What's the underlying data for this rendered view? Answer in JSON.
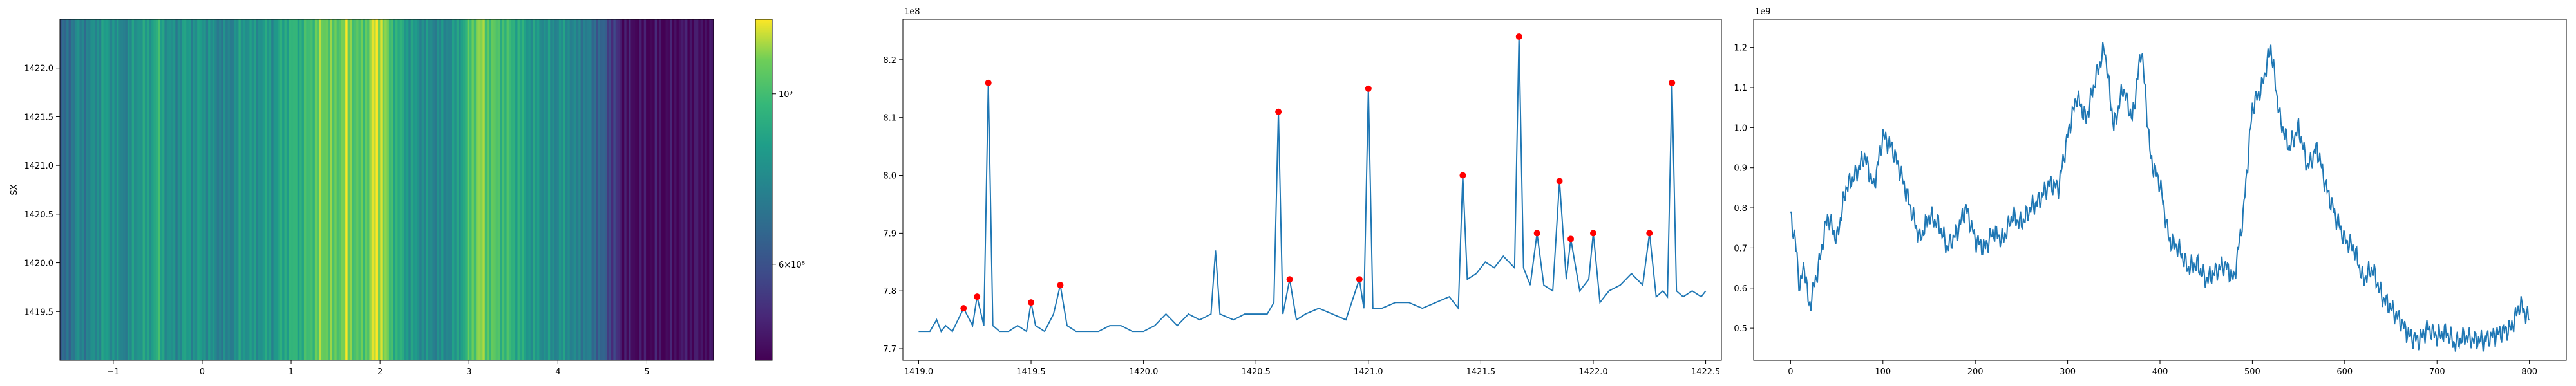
{
  "chart_data": [
    {
      "type": "heatmap",
      "title": "",
      "xlabel": "",
      "ylabel": "SX",
      "xlim": [
        -1.6,
        5.75
      ],
      "ylim": [
        1419.0,
        1422.5
      ],
      "x_ticks": [
        "−1",
        "0",
        "1",
        "2",
        "3",
        "4",
        "5"
      ],
      "x_tick_values": [
        -1,
        0,
        1,
        2,
        3,
        4,
        5
      ],
      "y_ticks": [
        "1419.5",
        "1420.0",
        "1420.5",
        "1421.0",
        "1421.5",
        "1422.0"
      ],
      "y_tick_values": [
        1419.5,
        1420.0,
        1420.5,
        1421.0,
        1421.5,
        1422.0
      ],
      "colormap": "viridis",
      "colorbar_scale": "log",
      "colorbar_ticks": [
        "10⁹",
        "6×10⁸"
      ],
      "colorbar_tick_values": [
        1.0,
        0.6
      ],
      "colorbar_range": [
        0.45,
        1.25
      ],
      "column_profile": {
        "x": [
          -1.6,
          -1.5,
          -1.4,
          -1.3,
          -1.2,
          -1.1,
          -1.0,
          -0.9,
          -0.8,
          -0.7,
          -0.6,
          -0.5,
          -0.4,
          -0.3,
          -0.2,
          -0.1,
          0.0,
          0.1,
          0.2,
          0.3,
          0.4,
          0.5,
          0.6,
          0.7,
          0.8,
          0.9,
          1.0,
          1.1,
          1.2,
          1.3,
          1.4,
          1.5,
          1.6,
          1.7,
          1.8,
          1.9,
          2.0,
          2.1,
          2.2,
          2.3,
          2.4,
          2.5,
          2.6,
          2.7,
          2.8,
          2.9,
          3.0,
          3.1,
          3.2,
          3.3,
          3.4,
          3.5,
          3.6,
          3.7,
          3.8,
          3.9,
          4.0,
          4.1,
          4.2,
          4.3,
          4.4,
          4.5,
          4.6,
          4.7,
          4.8,
          4.9,
          5.0,
          5.1,
          5.2,
          5.3,
          5.4,
          5.5,
          5.6,
          5.7
        ],
        "level": [
          0.3,
          0.42,
          0.52,
          0.48,
          0.55,
          0.6,
          0.58,
          0.5,
          0.55,
          0.62,
          0.6,
          0.72,
          0.58,
          0.52,
          0.62,
          0.56,
          0.6,
          0.55,
          0.5,
          0.48,
          0.58,
          0.6,
          0.56,
          0.62,
          0.58,
          0.66,
          0.72,
          0.7,
          0.76,
          0.85,
          0.88,
          0.8,
          0.92,
          0.84,
          0.78,
          0.92,
          0.98,
          0.8,
          0.7,
          0.62,
          0.58,
          0.55,
          0.52,
          0.52,
          0.55,
          0.62,
          0.78,
          0.9,
          0.84,
          0.8,
          0.76,
          0.72,
          0.66,
          0.6,
          0.58,
          0.55,
          0.54,
          0.58,
          0.48,
          0.5,
          0.4,
          0.34,
          0.22,
          0.1,
          0.05,
          0.03,
          0.03,
          0.04,
          0.02,
          0.03,
          0.05,
          0.06,
          0.04,
          0.03
        ]
      }
    },
    {
      "type": "line",
      "title": "",
      "xlabel": "",
      "ylabel": "",
      "offset_text": "1e8",
      "xlim": [
        1418.93,
        1422.57
      ],
      "ylim": [
        7.68,
        8.27
      ],
      "x_ticks": [
        "1419.0",
        "1419.5",
        "1420.0",
        "1420.5",
        "1421.0",
        "1421.5",
        "1422.0",
        "1422.5"
      ],
      "x_tick_values": [
        1419.0,
        1419.5,
        1420.0,
        1420.5,
        1421.0,
        1421.5,
        1422.0,
        1422.5
      ],
      "y_ticks": [
        "7.7",
        "7.8",
        "7.9",
        "8.0",
        "8.1",
        "8.2"
      ],
      "y_tick_values": [
        7.7,
        7.8,
        7.9,
        8.0,
        8.1,
        8.2
      ],
      "line_color": "#1f77b4",
      "marker_color": "#ff0000",
      "series": [
        {
          "x": [
            1419.0,
            1419.05,
            1419.08,
            1419.1,
            1419.12,
            1419.15,
            1419.2,
            1419.24,
            1419.26,
            1419.29,
            1419.31,
            1419.33,
            1419.36,
            1419.4,
            1419.44,
            1419.48,
            1419.5,
            1419.52,
            1419.56,
            1419.6,
            1419.63,
            1419.66,
            1419.7,
            1419.75,
            1419.8,
            1419.85,
            1419.9,
            1419.95,
            1420.0,
            1420.05,
            1420.1,
            1420.15,
            1420.2,
            1420.25,
            1420.3,
            1420.32,
            1420.34,
            1420.4,
            1420.45,
            1420.5,
            1420.55,
            1420.58,
            1420.6,
            1420.62,
            1420.65,
            1420.68,
            1420.72,
            1420.78,
            1420.84,
            1420.9,
            1420.96,
            1420.98,
            1421.0,
            1421.02,
            1421.06,
            1421.12,
            1421.18,
            1421.24,
            1421.3,
            1421.36,
            1421.4,
            1421.42,
            1421.44,
            1421.48,
            1421.52,
            1421.56,
            1421.6,
            1421.65,
            1421.67,
            1421.69,
            1421.72,
            1421.75,
            1421.78,
            1421.82,
            1421.85,
            1421.88,
            1421.9,
            1421.94,
            1421.98,
            1422.0,
            1422.03,
            1422.07,
            1422.12,
            1422.17,
            1422.22,
            1422.25,
            1422.28,
            1422.31,
            1422.33,
            1422.35,
            1422.37,
            1422.4,
            1422.44,
            1422.48,
            1422.5
          ],
          "y": [
            7.73,
            7.73,
            7.75,
            7.73,
            7.74,
            7.73,
            7.77,
            7.74,
            7.79,
            7.74,
            8.16,
            7.74,
            7.73,
            7.73,
            7.74,
            7.73,
            7.78,
            7.74,
            7.73,
            7.76,
            7.81,
            7.74,
            7.73,
            7.73,
            7.73,
            7.74,
            7.74,
            7.73,
            7.73,
            7.74,
            7.76,
            7.74,
            7.76,
            7.75,
            7.76,
            7.87,
            7.76,
            7.75,
            7.76,
            7.76,
            7.76,
            7.78,
            8.11,
            7.76,
            7.82,
            7.75,
            7.76,
            7.77,
            7.76,
            7.75,
            7.82,
            7.77,
            8.15,
            7.77,
            7.77,
            7.78,
            7.78,
            7.77,
            7.78,
            7.79,
            7.77,
            8.0,
            7.82,
            7.83,
            7.85,
            7.84,
            7.86,
            7.84,
            8.24,
            7.84,
            7.81,
            7.9,
            7.81,
            7.8,
            7.99,
            7.82,
            7.89,
            7.8,
            7.82,
            7.9,
            7.78,
            7.8,
            7.81,
            7.83,
            7.81,
            7.9,
            7.79,
            7.8,
            7.79,
            8.16,
            7.8,
            7.79,
            7.8,
            7.79,
            7.8
          ]
        }
      ],
      "peaks": {
        "x": [
          1419.2,
          1419.26,
          1419.31,
          1419.5,
          1419.63,
          1420.6,
          1420.65,
          1420.96,
          1421.0,
          1421.42,
          1421.67,
          1421.75,
          1421.85,
          1421.9,
          1422.0,
          1422.25,
          1422.35
        ],
        "y": [
          7.77,
          7.79,
          8.16,
          7.78,
          7.81,
          8.11,
          7.82,
          7.82,
          8.15,
          8.0,
          8.24,
          7.9,
          7.99,
          7.89,
          7.9,
          7.9,
          8.16
        ]
      }
    },
    {
      "type": "line",
      "title": "",
      "xlabel": "",
      "ylabel": "",
      "offset_text": "1e9",
      "xlim": [
        -40,
        840
      ],
      "ylim": [
        0.42,
        1.27
      ],
      "x_ticks": [
        "0",
        "100",
        "200",
        "300",
        "400",
        "500",
        "600",
        "700",
        "800"
      ],
      "x_tick_values": [
        0,
        100,
        200,
        300,
        400,
        500,
        600,
        700,
        800
      ],
      "y_ticks": [
        "0.5",
        "0.6",
        "0.7",
        "0.8",
        "0.9",
        "1.0",
        "1.1",
        "1.2"
      ],
      "y_tick_values": [
        0.5,
        0.6,
        0.7,
        0.8,
        0.9,
        1.0,
        1.1,
        1.2
      ],
      "line_color": "#1f77b4",
      "series": [
        {
          "anchors_x": [
            0,
            5,
            10,
            15,
            20,
            25,
            30,
            40,
            50,
            60,
            70,
            80,
            90,
            100,
            110,
            120,
            130,
            140,
            150,
            160,
            170,
            180,
            190,
            200,
            210,
            220,
            230,
            240,
            250,
            260,
            270,
            280,
            290,
            300,
            310,
            320,
            330,
            340,
            350,
            360,
            370,
            380,
            390,
            400,
            410,
            420,
            430,
            440,
            450,
            460,
            470,
            480,
            490,
            500,
            510,
            520,
            530,
            540,
            550,
            560,
            570,
            580,
            590,
            600,
            610,
            620,
            630,
            640,
            650,
            660,
            670,
            680,
            690,
            700,
            710,
            720,
            730,
            740,
            750,
            760,
            770,
            780,
            790,
            800
          ],
          "anchors_y": [
            0.78,
            0.72,
            0.6,
            0.66,
            0.55,
            0.6,
            0.65,
            0.78,
            0.72,
            0.85,
            0.88,
            0.93,
            0.85,
            0.98,
            0.95,
            0.88,
            0.8,
            0.72,
            0.78,
            0.76,
            0.7,
            0.74,
            0.8,
            0.72,
            0.7,
            0.74,
            0.72,
            0.78,
            0.76,
            0.8,
            0.82,
            0.86,
            0.85,
            0.98,
            1.08,
            1.02,
            1.12,
            1.2,
            1.0,
            1.1,
            1.02,
            1.2,
            0.92,
            0.86,
            0.72,
            0.7,
            0.65,
            0.66,
            0.62,
            0.64,
            0.66,
            0.62,
            0.78,
            1.05,
            1.1,
            1.2,
            1.02,
            0.95,
            1.0,
            0.9,
            0.95,
            0.85,
            0.78,
            0.72,
            0.7,
            0.62,
            0.65,
            0.58,
            0.55,
            0.52,
            0.48,
            0.47,
            0.5,
            0.48,
            0.49,
            0.46,
            0.48,
            0.47,
            0.47,
            0.48,
            0.49,
            0.5,
            0.56,
            0.52
          ]
        }
      ]
    }
  ]
}
